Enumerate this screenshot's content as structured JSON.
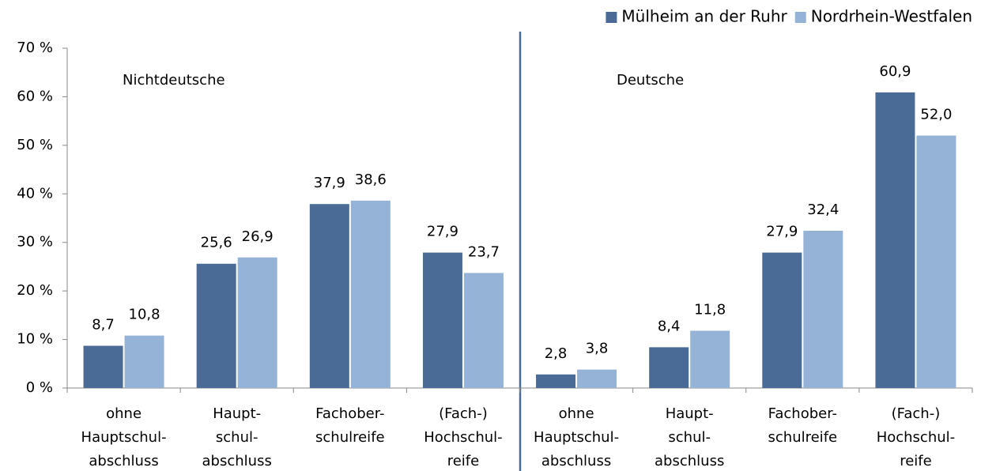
{
  "chart_data": {
    "type": "bar",
    "categories": [
      [
        "ohne",
        "Hauptschul-",
        "abschluss"
      ],
      [
        "Haupt-",
        "schul-",
        "abschluss"
      ],
      [
        "Fachober-",
        "schulreife"
      ],
      [
        "(Fach-)",
        "Hochschul-",
        "reife"
      ],
      [
        "ohne",
        "Hauptschul-",
        "abschluss"
      ],
      [
        "Haupt-",
        "schul-",
        "abschluss"
      ],
      [
        "Fachober-",
        "schulreife"
      ],
      [
        "(Fach-)",
        "Hochschul-",
        "reife"
      ]
    ],
    "series": [
      {
        "name": "Mülheim an der Ruhr",
        "color": "#4a6b96",
        "values": [
          8.7,
          25.6,
          37.9,
          27.9,
          2.8,
          8.4,
          27.9,
          60.9
        ],
        "value_labels": [
          "8,7",
          "25,6",
          "37,9",
          "27,9",
          "2,8",
          "8,4",
          "27,9",
          "60,9"
        ]
      },
      {
        "name": "Nordrhein-Westfalen",
        "color": "#95b3d7",
        "values": [
          10.8,
          26.9,
          38.6,
          23.7,
          3.8,
          11.8,
          32.4,
          52.0
        ],
        "value_labels": [
          "10,8",
          "26,9",
          "38,6",
          "23,7",
          "3,8",
          "11,8",
          "32,4",
          "52,0"
        ]
      }
    ],
    "annotations": [
      "Nichtdeutsche",
      "Deutsche"
    ],
    "ylim": [
      0,
      70
    ],
    "yticks": [
      {
        "value": 0,
        "label": "0 %"
      },
      {
        "value": 10,
        "label": "10 %"
      },
      {
        "value": 20,
        "label": "20 %"
      },
      {
        "value": 30,
        "label": "30 %"
      },
      {
        "value": 40,
        "label": "40 %"
      },
      {
        "value": 50,
        "label": "50 %"
      },
      {
        "value": 60,
        "label": "60 %"
      },
      {
        "value": 70,
        "label": "70 %"
      }
    ],
    "grid": false,
    "legend": "top-right"
  }
}
